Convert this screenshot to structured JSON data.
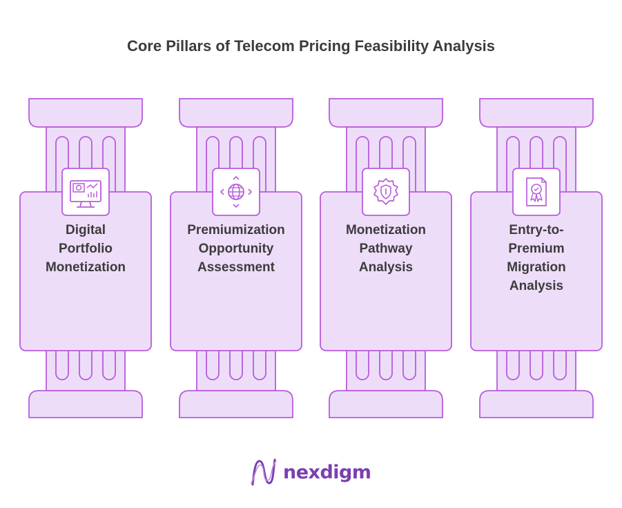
{
  "title": "Core Pillars of Telecom Pricing Feasibility Analysis",
  "colors": {
    "fill": "#EEDDF9",
    "stroke": "#B75BDC",
    "text": "#3C3C3C",
    "brand": "#7B3FB0"
  },
  "pillars": [
    {
      "label_lines": [
        "Digital",
        "Portfolio",
        "Monetization"
      ],
      "icon": "dashboard-monitor-icon"
    },
    {
      "label_lines": [
        "Premiumization",
        "Opportunity",
        "Assessment"
      ],
      "icon": "globe-arrows-icon"
    },
    {
      "label_lines": [
        "Monetization",
        "Pathway",
        "Analysis"
      ],
      "icon": "gear-shield-icon"
    },
    {
      "label_lines": [
        "Entry-to-",
        "Premium",
        "Migration",
        "Analysis"
      ],
      "icon": "certificate-icon"
    }
  ],
  "brand": {
    "name": "nexdigm",
    "icon": "nexdigm-logo-icon"
  }
}
